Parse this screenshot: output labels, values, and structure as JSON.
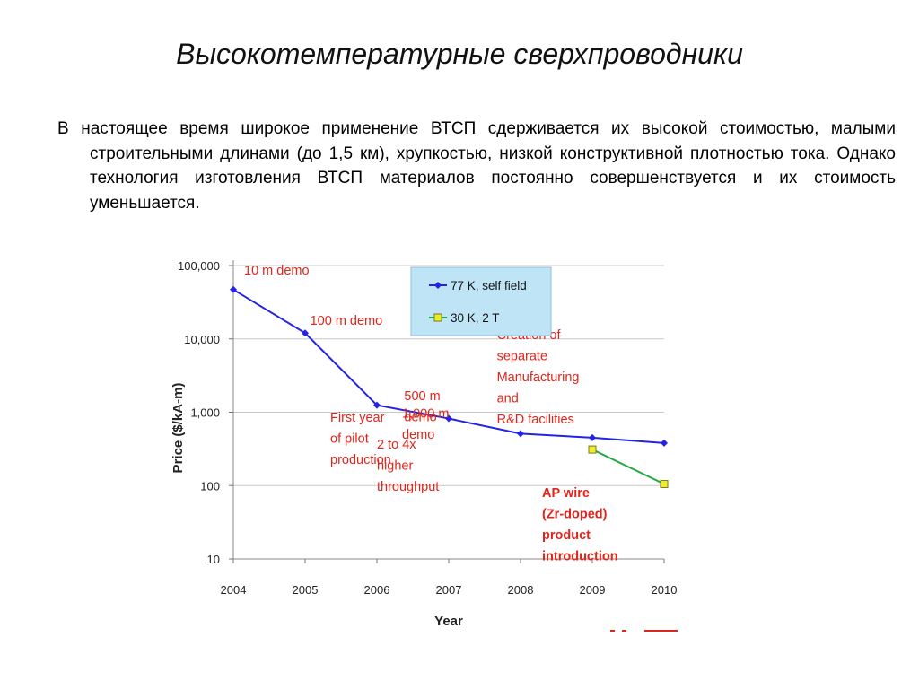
{
  "slide": {
    "title": "Высокотемпературные сверхпроводники",
    "paragraph": "В настоящее время широкое применение ВТСП сдерживается их высокой стоимостью, малыми строительными длинами (до 1,5 км), хрупкостью, низкой конструктивной плотностью тока. Однако технология изготовления ВТСП материалов постоянно совершенствуется и их стоимость уменьшается."
  },
  "chart_data": {
    "type": "line",
    "title": "",
    "xlabel": "Year",
    "ylabel": "Price ($/kA-m)",
    "yscale": "log",
    "ylim": [
      10,
      100000
    ],
    "xlim": [
      2004,
      2010
    ],
    "y_ticks": [
      "100,000",
      "10,000",
      "1,000",
      "100",
      "10"
    ],
    "y_tick_values": [
      100000,
      10000,
      1000,
      100,
      10
    ],
    "x_ticks": [
      "2004",
      "2005",
      "2006",
      "2007",
      "2008",
      "2009",
      "2010"
    ],
    "x_tick_values": [
      2004,
      2005,
      2006,
      2007,
      2008,
      2009,
      2010
    ],
    "grid": "horizontal",
    "legend_position": "top-center",
    "series": [
      {
        "name": "77 K, self field",
        "color": "#2323e6",
        "marker": "diamond",
        "x": [
          2004,
          2005,
          2006,
          2007,
          2008,
          2009,
          2010
        ],
        "y": [
          47000,
          12000,
          1250,
          820,
          510,
          450,
          380
        ]
      },
      {
        "name": "30 K, 2 T",
        "color": "#22aa44",
        "marker": "square",
        "marker_fill": "#eeee22",
        "x": [
          2009,
          2010
        ],
        "y": [
          310,
          105
        ]
      }
    ],
    "annotations": [
      {
        "x": 2004.15,
        "y": 75000,
        "lines": [
          "10 m demo"
        ],
        "bold": false
      },
      {
        "x": 2005.07,
        "y": 15500,
        "lines": [
          "100 m demo"
        ],
        "bold": false
      },
      {
        "x": 2006.38,
        "y": 1470,
        "lines": [
          "500 m",
          "demo"
        ],
        "bold": false
      },
      {
        "x": 2006.35,
        "y": 850,
        "lines": [
          "1,000 m",
          "demo"
        ],
        "bold": false
      },
      {
        "x": 2005.35,
        "y": 740,
        "lines": [
          "First year",
          "of pilot",
          "production"
        ],
        "bold": false
      },
      {
        "x": 2006.0,
        "y": 320,
        "lines": [
          "2 to 4x",
          "higher",
          "throughput"
        ],
        "bold": false
      },
      {
        "x": 2007.67,
        "y": 10000,
        "lines": [
          "Creation of",
          "separate",
          "Manufacturing",
          "and",
          "R&D facilities"
        ],
        "bold": false
      },
      {
        "x": 2008.3,
        "y": 70,
        "lines": [
          "AP wire",
          "(Zr-doped)",
          "product",
          "introduction"
        ],
        "bold": true
      }
    ]
  }
}
